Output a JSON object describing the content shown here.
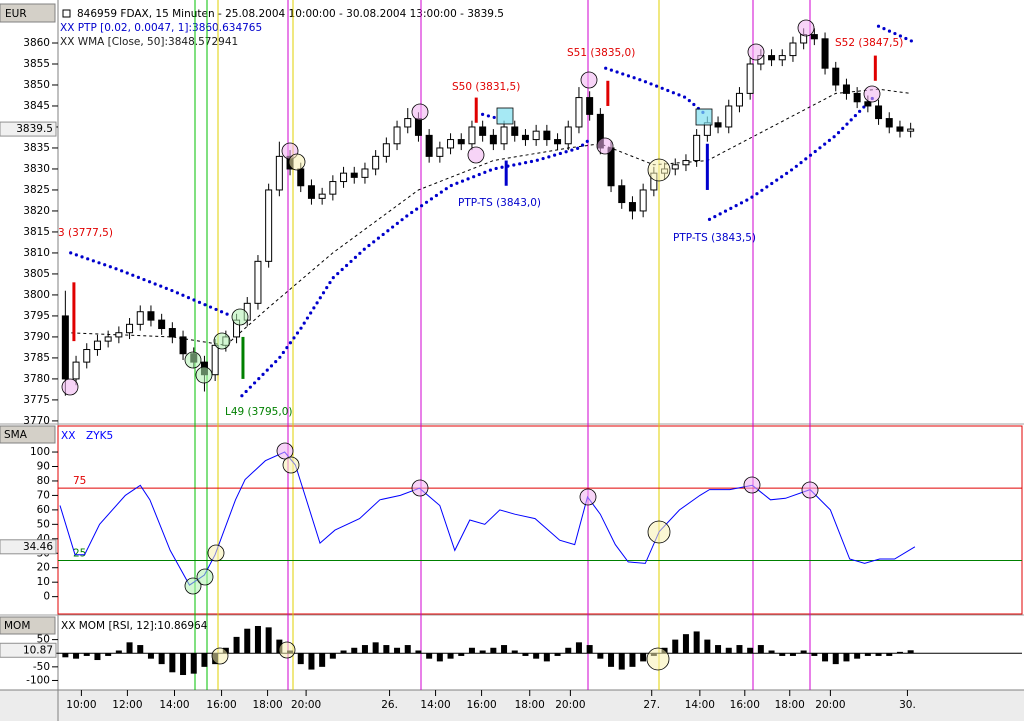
{
  "chart_data": [
    {
      "type": "candlestick",
      "axis_label": "EUR",
      "title": "846959  FDAX, 15 Minuten - 25.08.2004 10:00:00 - 30.08.2004 13:00:00 - 3839.5",
      "ylim": [
        3769.5,
        3865
      ],
      "yticks": [
        3770,
        3775,
        3780,
        3785,
        3790,
        3795,
        3800,
        3805,
        3810,
        3815,
        3820,
        3825,
        3830,
        3835,
        3840,
        3845,
        3850,
        3855,
        3860
      ],
      "last_value": 3839.5,
      "color": "#000000",
      "open": [
        3795,
        3780,
        3784,
        3787,
        3789,
        3790,
        3791,
        3793,
        3796,
        3794,
        3792,
        3790,
        3786,
        3784,
        3781,
        3788,
        3790,
        3794,
        3798,
        3808,
        3825,
        3833,
        3830,
        3826,
        3823,
        3824,
        3827,
        3829,
        3828,
        3830,
        3833,
        3836,
        3840,
        3842,
        3838,
        3833,
        3835,
        3837,
        3836,
        3840,
        3838,
        3836,
        3840,
        3838,
        3837,
        3839,
        3837,
        3836,
        3840,
        3847,
        3843,
        3835,
        3826,
        3822,
        3820,
        3825,
        3829,
        3830,
        3831,
        3832,
        3838,
        3841,
        3840,
        3845,
        3848,
        3855,
        3857,
        3856,
        3857,
        3860,
        3862,
        3861,
        3854,
        3850,
        3848,
        3846,
        3845,
        3842,
        3840,
        3839
      ],
      "high": [
        3801,
        3785.5,
        3788.5,
        3790.5,
        3791.5,
        3792.5,
        3794.5,
        3797.5,
        3797.5,
        3795.5,
        3793.5,
        3791.5,
        3787.5,
        3785.5,
        3789.5,
        3791.5,
        3795.5,
        3799.5,
        3809.5,
        3826.5,
        3836.5,
        3834.5,
        3831.5,
        3827.5,
        3825.5,
        3828.5,
        3830.5,
        3830.5,
        3831.5,
        3834.5,
        3837.5,
        3841.5,
        3844.5,
        3843.5,
        3839.5,
        3836.5,
        3838.5,
        3838.5,
        3841.5,
        3841.5,
        3839.5,
        3841.5,
        3841.5,
        3839.5,
        3840.5,
        3840.5,
        3838.5,
        3841.5,
        3849.5,
        3848.5,
        3844.5,
        3836.5,
        3827.5,
        3823.5,
        3826.5,
        3830.5,
        3831.5,
        3832.5,
        3833.5,
        3839.5,
        3842.5,
        3842.5,
        3846.5,
        3849.5,
        3856.5,
        3858.5,
        3858.5,
        3858.5,
        3861.5,
        3863.5,
        3863.5,
        3862.5,
        3855.5,
        3851.5,
        3849.5,
        3847.5,
        3846.5,
        3843.5,
        3841.5,
        3841
      ],
      "low": [
        3776,
        3778.5,
        3782.5,
        3785.5,
        3787.5,
        3788.5,
        3789.5,
        3791.5,
        3792.5,
        3790.5,
        3788.5,
        3784.5,
        3782.5,
        3777,
        3779.5,
        3786.5,
        3788.5,
        3792.5,
        3796.5,
        3806.5,
        3823.5,
        3828.5,
        3824.5,
        3821.5,
        3821.5,
        3822.5,
        3825.5,
        3826.5,
        3826.5,
        3828.5,
        3831.5,
        3834.5,
        3838.5,
        3836.5,
        3831.5,
        3831.5,
        3833.5,
        3834.5,
        3834.5,
        3836.5,
        3834.5,
        3834.5,
        3836.5,
        3835.5,
        3835.5,
        3835.5,
        3834.5,
        3834.5,
        3838.5,
        3841.5,
        3833.5,
        3824.5,
        3820.5,
        3818,
        3818.5,
        3823.5,
        3827.5,
        3828.5,
        3829.5,
        3830.5,
        3836.5,
        3838.5,
        3838.5,
        3843.5,
        3846.5,
        3853.5,
        3854.5,
        3854.5,
        3855.5,
        3858.5,
        3859.5,
        3852.5,
        3848.5,
        3846.5,
        3844.5,
        3843.5,
        3840.5,
        3838.5,
        3837.5,
        3837.5
      ],
      "close": [
        3780,
        3784,
        3787,
        3789,
        3790,
        3791,
        3793,
        3796,
        3794,
        3792,
        3790,
        3786,
        3784,
        3781,
        3788,
        3790,
        3794,
        3798,
        3808,
        3825,
        3833,
        3830,
        3826,
        3823,
        3824,
        3827,
        3829,
        3828,
        3830,
        3833,
        3836,
        3840,
        3842,
        3838,
        3833,
        3835,
        3837,
        3836,
        3840,
        3838,
        3836,
        3840,
        3838,
        3837,
        3839,
        3837,
        3836,
        3840,
        3847,
        3843,
        3835,
        3826,
        3822,
        3820,
        3825,
        3829,
        3830,
        3831,
        3832,
        3838,
        3841,
        3840,
        3845,
        3848,
        3855,
        3857,
        3856,
        3857,
        3860,
        3862,
        3861,
        3854,
        3850,
        3848,
        3846,
        3845,
        3842,
        3840,
        3839,
        3839.5
      ],
      "series": [
        {
          "name": "XX PTP [0.02, 0.0047, 1]:3860.634765",
          "color": "#0000cc",
          "style": "dotted",
          "x": [
            0.5,
            5,
            10,
            15.5,
            null,
            16.5,
            20,
            22,
            25,
            28,
            32,
            36,
            40,
            44,
            48,
            49,
            null,
            39,
            40.5,
            null,
            50.5,
            54,
            58,
            59.8,
            null,
            60.2,
            64,
            68,
            72,
            75.5,
            null,
            76,
            79.5
          ],
          "values": [
            3810,
            3806,
            3801,
            3795,
            null,
            3776,
            3785,
            3792,
            3804,
            3811,
            3819,
            3826,
            3830,
            3832,
            3835,
            3837,
            null,
            3843,
            3842,
            null,
            3854,
            3851,
            3847,
            3843,
            null,
            3818,
            3823,
            3830,
            3838,
            3847,
            null,
            3864,
            3860
          ]
        },
        {
          "name": "XX WMA [Close, 50]:3848.572941",
          "color": "#000000",
          "style": "dashed",
          "x": [
            0,
            10,
            15,
            19,
            25,
            33,
            40,
            47,
            50,
            55,
            60,
            66,
            72,
            76,
            79
          ],
          "values": [
            3791,
            3790,
            3788,
            3797,
            3810,
            3825,
            3832,
            3835,
            3836,
            3831,
            3832,
            3840,
            3848,
            3849,
            3848
          ]
        }
      ],
      "signals": [
        {
          "color": "#e00000",
          "x": 0.8,
          "values": [
            3789,
            3803
          ]
        },
        {
          "color": "#008000",
          "x": 16.6,
          "values": [
            3780,
            3790
          ]
        },
        {
          "color": "#e00000",
          "x": 38.4,
          "values": [
            3841,
            3847
          ]
        },
        {
          "color": "#0000cc",
          "x": 41.2,
          "values": [
            3826,
            3832
          ]
        },
        {
          "color": "#e00000",
          "x": 50.7,
          "values": [
            3845,
            3851
          ]
        },
        {
          "color": "#0000cc",
          "x": 60,
          "values": [
            3825,
            3836
          ]
        },
        {
          "color": "#e00000",
          "x": 75.7,
          "values": [
            3851,
            3857
          ]
        }
      ],
      "annotations": [
        {
          "text": "3 (3777,5)",
          "color": "#e00000"
        },
        {
          "text": "S50 (3831,5)",
          "color": "#e00000"
        },
        {
          "text": "S51 (3835,0)",
          "color": "#e00000"
        },
        {
          "text": "S52 (3847,5)",
          "color": "#e00000"
        },
        {
          "text": "L49 (3795,0)",
          "color": "#008000"
        },
        {
          "text": "PTP-TS (3843,0)",
          "color": "#0000cc"
        },
        {
          "text": "PTP-TS (3843,5)",
          "color": "#0000cc"
        }
      ]
    },
    {
      "type": "line",
      "axis_label": "SMA",
      "title": "XX",
      "ylim": [
        -12,
        118
      ],
      "yticks": [
        0,
        10,
        20,
        30,
        40,
        50,
        60,
        70,
        80,
        90,
        100
      ],
      "last_value": 34.46,
      "levels": [
        {
          "value": 75,
          "color": "#e00000"
        },
        {
          "value": 25,
          "color": "#008000"
        }
      ],
      "series": [
        {
          "name": "ZYK5",
          "color": "#0000ff",
          "style": "solid",
          "x": [
            -0.5,
            0.9,
            1.8,
            3.2,
            5.6,
            7,
            7.9,
            9.8,
            11.6,
            13,
            14,
            15.9,
            16.8,
            18.7,
            20.5,
            21.5,
            22.4,
            23.8,
            25.2,
            27.5,
            29.4,
            31.3,
            33.1,
            35,
            36.4,
            37.8,
            39.2,
            40.6,
            42,
            43.9,
            46.2,
            47.6,
            48.8,
            50,
            51.4,
            52.6,
            54.2,
            55.5,
            57.4,
            59.3,
            60.2,
            62.1,
            64.2,
            65.9,
            67.3,
            69.6,
            71.5,
            73.3,
            74.7,
            76.1,
            77.5,
            79.4
          ],
          "values": [
            63,
            29,
            29,
            50,
            70,
            77,
            67,
            32,
            8,
            15,
            29,
            67,
            81,
            94,
            100,
            91,
            70,
            37,
            46,
            54,
            67,
            70,
            75,
            63,
            32,
            53,
            50,
            60,
            57,
            54,
            39,
            36,
            69,
            57,
            36,
            24,
            23,
            45,
            60,
            70,
            74,
            74,
            77,
            67,
            68,
            74,
            60,
            26,
            23,
            26,
            26,
            34.46
          ]
        }
      ]
    },
    {
      "type": "bar",
      "axis_label": "MOM",
      "title": "XX MOM [RSI, 12]:10.86964",
      "ylim": [
        -135,
        133
      ],
      "yticks": [
        50,
        0,
        -50,
        -100
      ],
      "last_value": {
        "value": 10.86964,
        "label": "10.87"
      },
      "color": "#000000",
      "values": [
        -15,
        -20,
        -10,
        -25,
        -10,
        10,
        40,
        30,
        -20,
        -40,
        -70,
        -80,
        -75,
        -50,
        -40,
        20,
        60,
        90,
        100,
        95,
        50,
        10,
        -40,
        -60,
        -50,
        -20,
        10,
        20,
        30,
        40,
        30,
        20,
        30,
        10,
        -20,
        -30,
        -20,
        -10,
        20,
        10,
        20,
        30,
        10,
        -10,
        -20,
        -30,
        -10,
        20,
        40,
        30,
        -20,
        -50,
        -60,
        -50,
        -30,
        -10,
        20,
        50,
        70,
        80,
        50,
        30,
        20,
        30,
        20,
        30,
        10,
        -10,
        -10,
        10,
        -10,
        -30,
        -40,
        -30,
        -20,
        -10,
        -10,
        -10,
        5,
        10.86964
      ],
      "xticks": [
        {
          "value": 1.5,
          "label": "10:00"
        },
        {
          "value": 5.8,
          "label": "12:00"
        },
        {
          "value": 10.2,
          "label": "14:00"
        },
        {
          "value": 14.6,
          "label": "16:00"
        },
        {
          "value": 18.9,
          "label": "18:00"
        },
        {
          "value": 22.5,
          "label": "20:00"
        },
        {
          "value": 30.3,
          "label": "26."
        },
        {
          "value": 34.6,
          "label": "14:00"
        },
        {
          "value": 38.9,
          "label": "16:00"
        },
        {
          "value": 43.4,
          "label": "18:00"
        },
        {
          "value": 47.2,
          "label": "20:00"
        },
        {
          "value": 54.8,
          "label": "27."
        },
        {
          "value": 59.3,
          "label": "14:00"
        },
        {
          "value": 63.5,
          "label": "16:00"
        },
        {
          "value": 67.7,
          "label": "18:00"
        },
        {
          "value": 71.5,
          "label": "20:00"
        },
        {
          "value": 78.7,
          "label": "30."
        }
      ]
    }
  ]
}
